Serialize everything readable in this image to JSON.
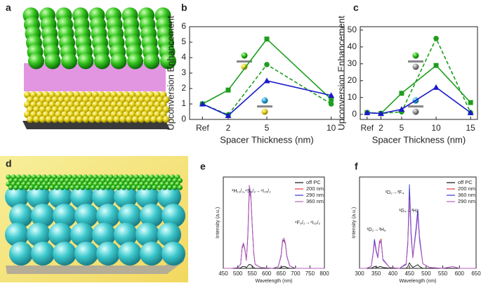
{
  "panel_labels": [
    "a",
    "b",
    "c",
    "d",
    "e",
    "f"
  ],
  "chart_data": [
    {
      "type": "line",
      "xlabel": "Spacer Thickness (nm)",
      "ylabel": "Upconversion Enhancement",
      "x": [
        0,
        2,
        5,
        10
      ],
      "xlim": [
        -1,
        11
      ],
      "xticks": [
        {
          "value": 0,
          "label": "Ref"
        },
        2,
        5,
        10
      ],
      "ylim": [
        0,
        6
      ],
      "yticks": [
        0,
        1,
        2,
        3,
        4,
        5,
        6
      ],
      "series": [
        {
          "color": "#1e9e1e",
          "marker": "square",
          "dash": false,
          "values": [
            1.0,
            1.9,
            5.2,
            1.3
          ]
        },
        {
          "color": "#1e9e1e",
          "marker": "circle",
          "dash": true,
          "values": [
            1.0,
            0.3,
            3.55,
            1.0
          ]
        },
        {
          "color": "#1a1ac8",
          "marker": "triangle",
          "dash": false,
          "values": [
            1.0,
            0.25,
            2.5,
            1.55
          ]
        }
      ]
    },
    {
      "type": "line",
      "xlabel": "Spacer Thickness (nm)",
      "ylabel": "Upconversion Enhancement",
      "x": [
        0,
        2,
        5,
        10,
        15
      ],
      "xlim": [
        -1,
        16
      ],
      "xticks": [
        {
          "value": 0,
          "label": "Ref"
        },
        2,
        5,
        10,
        15
      ],
      "ylim": [
        -3,
        52
      ],
      "yticks": [
        0,
        10,
        20,
        30,
        40,
        50
      ],
      "series": [
        {
          "color": "#1e9e1e",
          "marker": "square",
          "dash": false,
          "values": [
            1,
            0.5,
            12.5,
            29,
            7
          ]
        },
        {
          "color": "#1e9e1e",
          "marker": "circle",
          "dash": true,
          "values": [
            1,
            0.5,
            1.5,
            45,
            1
          ]
        },
        {
          "color": "#1a1ac8",
          "marker": "triangle",
          "dash": false,
          "values": [
            1,
            0.5,
            3,
            16,
            1
          ]
        }
      ]
    },
    {
      "type": "line",
      "xlabel": "Wavelength (nm)",
      "ylabel": "Intensity (a.u.)",
      "legend": "upper right",
      "annotations": [
        "²H₁₁/₂,⁴S₃/₂→⁴I₁₅/₂",
        "⁴F₉/₂→⁴I₁₅/₂"
      ],
      "x": [
        450,
        480,
        500,
        510,
        515,
        520,
        525,
        530,
        535,
        540,
        545,
        550,
        555,
        560,
        580,
        620,
        640,
        650,
        655,
        660,
        665,
        670,
        680,
        700,
        750,
        800
      ],
      "xlim": [
        450,
        800
      ],
      "xticks": [
        450,
        500,
        550,
        600,
        650,
        700,
        750,
        800
      ],
      "ylim": [
        0,
        1.15
      ],
      "series": [
        {
          "name": "off PC",
          "color": "#111111",
          "values": [
            0,
            0,
            0,
            0.005,
            0.02,
            0.025,
            0.02,
            0.01,
            0.03,
            0.05,
            0.045,
            0.03,
            0.01,
            0,
            0,
            0,
            0,
            0.01,
            0.02,
            0.025,
            0.02,
            0.01,
            0,
            0,
            0,
            0
          ]
        },
        {
          "name": "200 nm",
          "color": "#e8383d",
          "values": [
            0,
            0,
            0.01,
            0.05,
            0.25,
            0.3,
            0.22,
            0.1,
            0.4,
            0.95,
            0.9,
            0.55,
            0.2,
            0.05,
            0.01,
            0,
            0.02,
            0.15,
            0.33,
            0.35,
            0.3,
            0.15,
            0.03,
            0,
            0,
            0
          ]
        },
        {
          "name": "290 nm",
          "color": "#3a3ad0",
          "values": [
            0,
            0,
            0.01,
            0.05,
            0.26,
            0.31,
            0.23,
            0.1,
            0.42,
            1.0,
            0.92,
            0.56,
            0.21,
            0.05,
            0.01,
            0,
            0.02,
            0.16,
            0.34,
            0.36,
            0.31,
            0.15,
            0.03,
            0,
            0,
            0
          ]
        },
        {
          "name": "360 nm",
          "color": "#b860c0",
          "values": [
            0,
            0,
            0.01,
            0.05,
            0.27,
            0.32,
            0.24,
            0.1,
            0.45,
            1.05,
            0.95,
            0.58,
            0.22,
            0.05,
            0.01,
            0,
            0.02,
            0.17,
            0.36,
            0.38,
            0.32,
            0.16,
            0.03,
            0,
            0,
            0
          ]
        }
      ]
    },
    {
      "type": "line",
      "xlabel": "Wavelength (nm)",
      "ylabel": "Intensity (a.u.)",
      "legend": "upper right",
      "annotations": [
        "¹D₂→³F₄",
        "¹G₄→³H₆",
        "¹D₂→³H₆"
      ],
      "x": [
        300,
        320,
        335,
        340,
        345,
        350,
        355,
        360,
        365,
        370,
        390,
        420,
        440,
        445,
        450,
        455,
        460,
        470,
        475,
        480,
        490,
        510,
        550,
        580,
        590,
        600,
        650
      ],
      "xlim": [
        300,
        650
      ],
      "xticks": [
        300,
        350,
        400,
        450,
        500,
        550,
        600,
        650
      ],
      "ylim": [
        0,
        1
      ],
      "series": [
        {
          "name": "off PC",
          "color": "#111111",
          "values": [
            0,
            0,
            0,
            0.01,
            0.02,
            0.015,
            0.01,
            0.02,
            0.02,
            0.01,
            0,
            0,
            0,
            0.02,
            0.06,
            0.03,
            0.01,
            0.03,
            0.04,
            0.02,
            0,
            0,
            0,
            0,
            0,
            0,
            0
          ]
        },
        {
          "name": "200 nm",
          "color": "#e8383d",
          "values": [
            0,
            0,
            0.02,
            0.14,
            0.3,
            0.19,
            0.12,
            0.3,
            0.32,
            0.1,
            0.01,
            0,
            0.05,
            0.28,
            0.8,
            0.35,
            0.12,
            0.42,
            0.6,
            0.33,
            0.05,
            0.01,
            0,
            0.02,
            0.01,
            0,
            0
          ]
        },
        {
          "name": "360 nm",
          "color": "#3a3ad0",
          "values": [
            0,
            0,
            0.02,
            0.15,
            0.32,
            0.2,
            0.12,
            0.28,
            0.3,
            0.1,
            0.01,
            0,
            0.05,
            0.3,
            0.92,
            0.4,
            0.12,
            0.45,
            0.65,
            0.35,
            0.05,
            0.01,
            0,
            0.02,
            0.01,
            0,
            0
          ]
        },
        {
          "name": "290 nm",
          "color": "#b860c0",
          "values": [
            0,
            0,
            0.02,
            0.13,
            0.28,
            0.18,
            0.11,
            0.27,
            0.29,
            0.09,
            0.01,
            0,
            0.04,
            0.25,
            0.75,
            0.33,
            0.11,
            0.4,
            0.58,
            0.3,
            0.05,
            0.01,
            0,
            0.02,
            0.01,
            0,
            0
          ]
        }
      ]
    }
  ]
}
